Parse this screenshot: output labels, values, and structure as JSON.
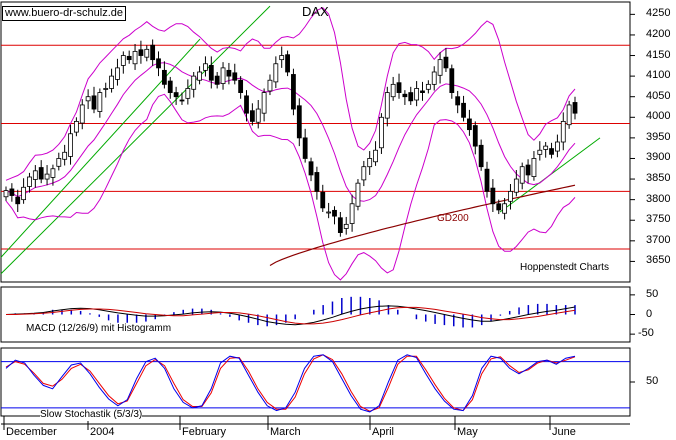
{
  "watermark": "www.buero-dr-schulz.de",
  "credit": "Hoppenstedt Charts",
  "colors": {
    "bollinger": "#cc00cc",
    "support": "#dd0000",
    "trend": "#00aa00",
    "gd200": "#8b0000",
    "macd_line": "#000000",
    "macd_signal": "#cc0000",
    "histogram": "#0000cc",
    "stoch_k": "#0000ee",
    "stoch_d": "#ee0000"
  },
  "chart_data": [
    {
      "type": "candlestick",
      "title": "DAX",
      "ylim": [
        3600,
        4280
      ],
      "y_ticks": [
        3650,
        3700,
        3750,
        3800,
        3850,
        3900,
        3950,
        4000,
        4050,
        4100,
        4150,
        4200,
        4250
      ],
      "x_tick_labels": [
        "December",
        "2004",
        "February",
        "March",
        "April",
        "May",
        "June"
      ],
      "horizontal_levels": [
        4175,
        3985,
        3820,
        3680
      ],
      "annotation": "GD200",
      "closes": [
        3822,
        3810,
        3790,
        3830,
        3855,
        3870,
        3850,
        3862,
        3875,
        3900,
        3915,
        3960,
        3990,
        4030,
        4050,
        4020,
        4060,
        4070,
        4100,
        4120,
        4150,
        4140,
        4160,
        4150,
        4165,
        4140,
        4120,
        4080,
        4060,
        4050,
        4040,
        4070,
        4100,
        4110,
        4130,
        4090,
        4080,
        4120,
        4100,
        4090,
        4060,
        4010,
        3990,
        4020,
        4060,
        4090,
        4130,
        4150,
        4110,
        4020,
        3950,
        3900,
        3860,
        3820,
        3780,
        3770,
        3760,
        3720,
        3740,
        3790,
        3840,
        3880,
        3900,
        3920,
        4000,
        4060,
        4080,
        4060,
        4050,
        4040,
        4070,
        4060,
        4080,
        4110,
        4140,
        4120,
        4060,
        4030,
        4000,
        3970,
        3930,
        3880,
        3820,
        3790,
        3775,
        3790,
        3820,
        3850,
        3880,
        3860,
        3900,
        3920,
        3930,
        3910,
        3940,
        3990,
        4030,
        4010
      ]
    },
    {
      "type": "line",
      "title": "MACD (12/26/9) mit Histogramm",
      "y_ticks": [
        50,
        0,
        -50
      ],
      "series": [
        {
          "values": [
            0,
            1,
            2,
            3,
            5,
            9,
            12,
            15,
            16,
            15,
            12,
            8,
            4,
            1,
            -2,
            -4,
            -4,
            -3,
            -1,
            1,
            4,
            6,
            7,
            6,
            3,
            -1,
            -6,
            -12,
            -18,
            -22,
            -25,
            -26,
            -24,
            -20,
            -14,
            -7,
            1,
            8,
            14,
            18,
            21,
            22,
            21,
            18,
            14,
            10,
            5,
            0,
            -5,
            -10,
            -14,
            -17,
            -17,
            -14,
            -10,
            -5,
            0,
            4,
            8,
            11,
            15,
            19
          ]
        },
        {
          "values": [
            0,
            0,
            1,
            2,
            3,
            5,
            8,
            11,
            13,
            14,
            14,
            13,
            11,
            8,
            5,
            2,
            0,
            -2,
            -3,
            -3,
            -1,
            1,
            3,
            5,
            5,
            4,
            1,
            -3,
            -8,
            -13,
            -18,
            -22,
            -24,
            -24,
            -22,
            -18,
            -13,
            -7,
            -1,
            4,
            9,
            14,
            17,
            18,
            18,
            16,
            13,
            9,
            5,
            1,
            -3,
            -8,
            -11,
            -13,
            -13,
            -11,
            -8,
            -5,
            -1,
            3,
            7,
            11
          ]
        }
      ]
    },
    {
      "type": "line",
      "title": "Slow Stochastik (5/3/3)",
      "y_ticks": [
        50
      ],
      "series": [
        {
          "values": [
            70,
            82,
            78,
            60,
            45,
            40,
            58,
            75,
            78,
            62,
            42,
            25,
            15,
            24,
            55,
            80,
            85,
            70,
            40,
            20,
            12,
            15,
            40,
            78,
            88,
            85,
            60,
            35,
            15,
            8,
            12,
            35,
            70,
            88,
            90,
            80,
            55,
            30,
            10,
            6,
            15,
            50,
            82,
            90,
            86,
            62,
            40,
            22,
            10,
            8,
            30,
            70,
            88,
            85,
            70,
            62,
            70,
            80,
            82,
            76,
            85,
            88
          ]
        },
        {
          "values": [
            72,
            80,
            76,
            63,
            48,
            44,
            54,
            70,
            76,
            66,
            48,
            30,
            18,
            22,
            48,
            74,
            83,
            74,
            48,
            24,
            14,
            14,
            34,
            70,
            85,
            86,
            66,
            40,
            20,
            10,
            10,
            28,
            62,
            84,
            90,
            83,
            62,
            36,
            14,
            7,
            12,
            42,
            76,
            88,
            88,
            68,
            46,
            26,
            12,
            8,
            24,
            62,
            84,
            87,
            74,
            64,
            68,
            78,
            82,
            78,
            82,
            87
          ]
        }
      ]
    }
  ]
}
